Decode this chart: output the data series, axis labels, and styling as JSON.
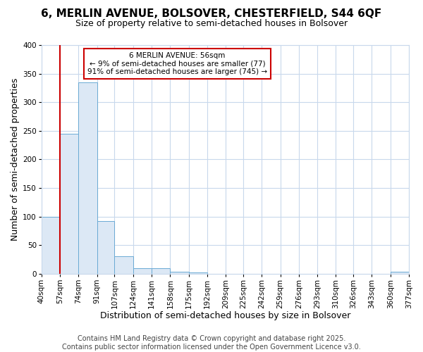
{
  "title": "6, MERLIN AVENUE, BOLSOVER, CHESTERFIELD, S44 6QF",
  "subtitle": "Size of property relative to semi-detached houses in Bolsover",
  "xlabel": "Distribution of semi-detached houses by size in Bolsover",
  "ylabel": "Number of semi-detached properties",
  "footer_line1": "Contains HM Land Registry data © Crown copyright and database right 2025.",
  "footer_line2": "Contains public sector information licensed under the Open Government Licence v3.0.",
  "bin_labels": [
    "40sqm",
    "57sqm",
    "74sqm",
    "91sqm",
    "107sqm",
    "124sqm",
    "141sqm",
    "158sqm",
    "175sqm",
    "192sqm",
    "209sqm",
    "225sqm",
    "242sqm",
    "259sqm",
    "276sqm",
    "293sqm",
    "310sqm",
    "326sqm",
    "343sqm",
    "360sqm",
    "377sqm"
  ],
  "bin_edges": [
    40,
    57,
    74,
    91,
    107,
    124,
    141,
    158,
    175,
    192,
    209,
    225,
    242,
    259,
    276,
    293,
    310,
    326,
    343,
    360,
    377
  ],
  "counts": [
    100,
    245,
    335,
    92,
    31,
    10,
    9,
    4,
    2,
    0,
    0,
    0,
    0,
    0,
    0,
    0,
    0,
    0,
    0,
    3
  ],
  "bar_facecolor": "#dce8f5",
  "bar_edgecolor": "#6aaad4",
  "vline_x": 57,
  "vline_color": "#cc0000",
  "annotation_text": "6 MERLIN AVENUE: 56sqm\n← 9% of semi-detached houses are smaller (77)\n91% of semi-detached houses are larger (745) →",
  "annotation_box_color": "#cc0000",
  "ylim": [
    0,
    400
  ],
  "yticks": [
    0,
    50,
    100,
    150,
    200,
    250,
    300,
    350,
    400
  ],
  "grid_color": "#c8d8ec",
  "background_color": "#ffffff",
  "title_fontsize": 11,
  "subtitle_fontsize": 9,
  "axis_label_fontsize": 9,
  "tick_fontsize": 7.5,
  "footer_fontsize": 7,
  "annot_fontsize": 7.5
}
